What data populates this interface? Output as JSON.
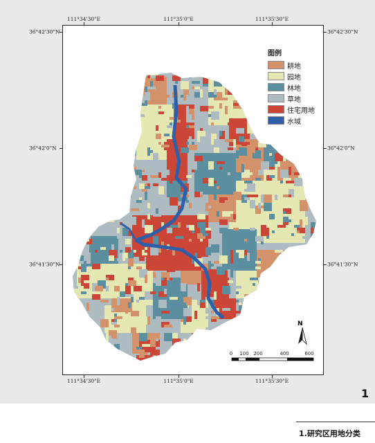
{
  "map": {
    "coords_top": [
      "111°34'30\"E",
      "111°35'0\"E",
      "111°35'30\"E"
    ],
    "coords_bottom": [
      "111°34'30\"E",
      "111°35'0\"E",
      "111°35'30\"E"
    ],
    "coords_left": [
      "36°42'30\"N",
      "36°42'0\"N",
      "36°41'30\"N"
    ],
    "coords_right": [
      "36°42'30\"N",
      "36°42'0\"N",
      "36°41'30\"N"
    ],
    "north_label": "N",
    "scale_labels": [
      "0",
      "100",
      "200",
      "400",
      "600"
    ]
  },
  "legend": {
    "title": "图例",
    "items": [
      {
        "label": "耕地",
        "color": "#d4926a"
      },
      {
        "label": "园地",
        "color": "#e6e8b4"
      },
      {
        "label": "林地",
        "color": "#5b8fa0"
      },
      {
        "label": "草地",
        "color": "#aebbc0"
      },
      {
        "label": "住宅用地",
        "color": "#cc4638"
      },
      {
        "label": "水域",
        "color": "#2f5fa8"
      }
    ]
  },
  "figure_number": "1",
  "caption": "1.研究区用地分类"
}
